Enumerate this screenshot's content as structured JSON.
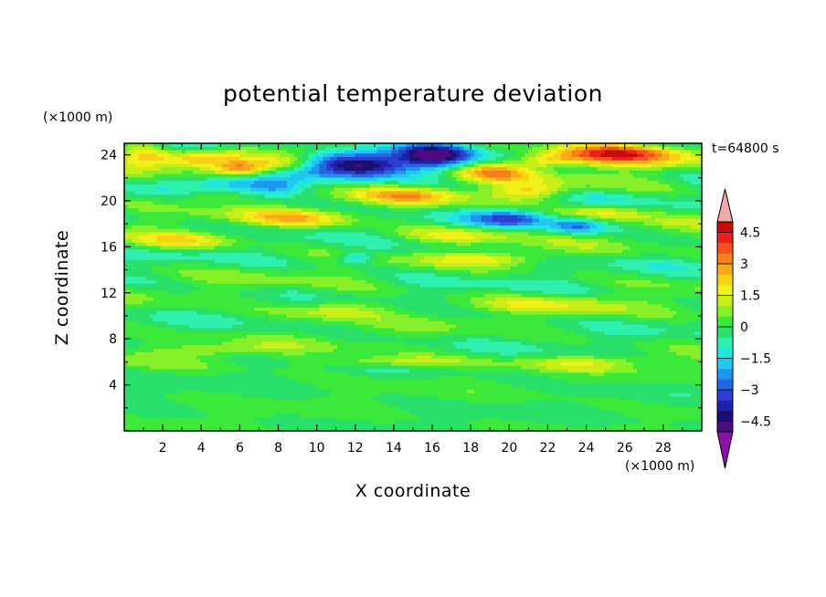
{
  "chart_data": {
    "type": "heatmap",
    "title": "potential temperature deviation",
    "xlabel": "X coordinate",
    "ylabel": "Z coordinate",
    "x_unit": "(×1000 m)",
    "y_unit": "(×1000 m)",
    "time_label": "t=64800 s",
    "xlim": [
      0,
      30
    ],
    "ylim": [
      0,
      25
    ],
    "x_ticks": [
      2,
      4,
      6,
      8,
      10,
      12,
      14,
      16,
      18,
      20,
      22,
      24,
      26,
      28
    ],
    "y_ticks": [
      4,
      8,
      12,
      16,
      20,
      24
    ],
    "grid": false,
    "colorbar": {
      "placement": "right",
      "min": -5,
      "max": 5,
      "step": 0.5,
      "extend": "both",
      "tick_labels": [
        "4.5",
        "3",
        "1.5",
        "0",
        "−1.5",
        "−3",
        "−4.5"
      ],
      "tick_values": [
        4.5,
        3,
        1.5,
        0,
        -1.5,
        -3,
        -4.5
      ],
      "colors": [
        "#4b0a7e",
        "#1a0f70",
        "#1f20a8",
        "#2a3ed0",
        "#2068e0",
        "#1e96ee",
        "#20c8f0",
        "#20e8e0",
        "#30f0b0",
        "#28e06a",
        "#3ce83a",
        "#88f028",
        "#c8f018",
        "#f0f01a",
        "#f8d014",
        "#f8a818",
        "#f88018",
        "#f45020",
        "#e82020",
        "#c80a0a"
      ],
      "lower_extend_color": "#8a12a8",
      "upper_extend_color": "#f2aaaa"
    },
    "anomalies": [
      {
        "x": 11,
        "z": 23.4,
        "value": -3.6,
        "sx": 1.4,
        "sz": 0.7
      },
      {
        "x": 13,
        "z": 23.0,
        "value": -3.2,
        "sx": 1.3,
        "sz": 0.7
      },
      {
        "x": 16.2,
        "z": 24.0,
        "value": -4.2,
        "sx": 1.4,
        "sz": 0.9
      },
      {
        "x": 3.5,
        "z": 24.8,
        "value": -2.2,
        "sx": 1.6,
        "sz": 0.5
      },
      {
        "x": 6,
        "z": 21.5,
        "value": -2.3,
        "sx": 1.5,
        "sz": 0.6
      },
      {
        "x": 8,
        "z": 21.2,
        "value": -1.8,
        "sx": 1.0,
        "sz": 0.5
      },
      {
        "x": 20.2,
        "z": 18.5,
        "value": -2.4,
        "sx": 1.4,
        "sz": 0.5
      },
      {
        "x": 23.5,
        "z": 17.8,
        "value": -2.4,
        "sx": 1.0,
        "sz": 0.5
      },
      {
        "x": 12,
        "z": 15.0,
        "value": -1.8,
        "sx": 0.7,
        "sz": 0.4
      },
      {
        "x": 25.5,
        "z": 24.1,
        "value": 4.0,
        "sx": 2.5,
        "sz": 0.7
      },
      {
        "x": 1,
        "z": 24.0,
        "value": 2.5,
        "sx": 1.0,
        "sz": 0.7
      },
      {
        "x": 3.5,
        "z": 23.5,
        "value": 2.1,
        "sx": 1.5,
        "sz": 0.5
      },
      {
        "x": 6.0,
        "z": 22.8,
        "value": 2.8,
        "sx": 1.0,
        "sz": 0.5
      },
      {
        "x": 8.2,
        "z": 23.2,
        "value": 2.2,
        "sx": 1.4,
        "sz": 0.5
      },
      {
        "x": 19,
        "z": 22.5,
        "value": 2.5,
        "sx": 1.5,
        "sz": 0.6
      },
      {
        "x": 22,
        "z": 23.5,
        "value": 1.9,
        "sx": 1.2,
        "sz": 0.4
      },
      {
        "x": 4.5,
        "z": 20.5,
        "value": 1.6,
        "sx": 1.6,
        "sz": 0.5
      },
      {
        "x": 15,
        "z": 20.5,
        "value": 1.9,
        "sx": 2.0,
        "sz": 0.5
      },
      {
        "x": 21,
        "z": 20.8,
        "value": 1.9,
        "sx": 1.4,
        "sz": 0.5
      },
      {
        "x": 9,
        "z": 18.5,
        "value": 1.6,
        "sx": 2.0,
        "sz": 0.5
      },
      {
        "x": 25,
        "z": 19.0,
        "value": 1.8,
        "sx": 1.6,
        "sz": 0.5
      },
      {
        "x": 3,
        "z": 16.5,
        "value": 1.6,
        "sx": 2.0,
        "sz": 0.5
      },
      {
        "x": 17,
        "z": 17.0,
        "value": 1.4,
        "sx": 2.5,
        "sz": 0.5
      },
      {
        "x": 19,
        "z": 15.0,
        "value": 1.4,
        "sx": 2.0,
        "sz": 0.4
      },
      {
        "x": 11,
        "z": 10.5,
        "value": 1.5,
        "sx": 2.0,
        "sz": 0.6
      },
      {
        "x": 22,
        "z": 11.0,
        "value": 1.1,
        "sx": 3.0,
        "sz": 0.5
      },
      {
        "x": 14,
        "z": 6.0,
        "value": 1.4,
        "sx": 3.0,
        "sz": 0.4
      },
      {
        "x": 24,
        "z": 6.0,
        "value": 1.2,
        "sx": 2.5,
        "sz": 0.4
      },
      {
        "x": 5,
        "z": 7.0,
        "value": 1.0,
        "sx": 2.5,
        "sz": 0.4
      }
    ]
  }
}
